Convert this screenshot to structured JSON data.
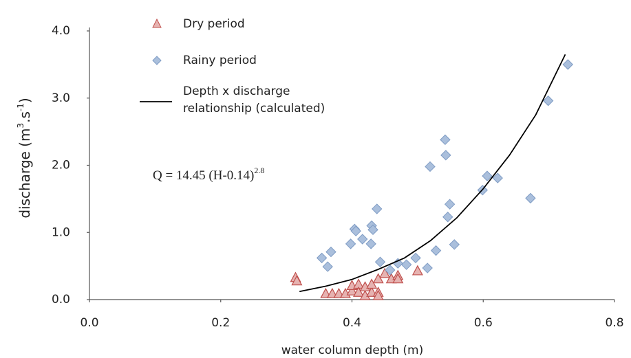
{
  "chart_data": {
    "type": "scatter",
    "xlabel": "water column depth (m)",
    "ylabel": [
      "discharge (m",
      "3",
      ".s",
      "-1",
      ")"
    ],
    "annotation": [
      "Q = 14.45 (H-0.14)",
      "2.8"
    ],
    "xlim": [
      0,
      0.8
    ],
    "xticks": [
      {
        "value": 0,
        "label": "0.0"
      },
      0.2,
      0.4,
      0.6,
      0.8
    ],
    "ylim": [
      0,
      4
    ],
    "yticks": [
      {
        "value": 0,
        "label": "0.0"
      },
      {
        "value": 1,
        "label": "1.0"
      },
      {
        "value": 2,
        "label": "2.0"
      },
      {
        "value": 3,
        "label": "3.0"
      },
      {
        "value": 4,
        "label": "4.0"
      }
    ],
    "series": [
      {
        "name": [
          "Dry period"
        ],
        "marker": "triangle",
        "color": "#c0504d",
        "x": [
          0.314,
          0.316,
          0.36,
          0.37,
          0.38,
          0.39,
          0.4,
          0.4,
          0.41,
          0.41,
          0.42,
          0.42,
          0.43,
          0.43,
          0.44,
          0.44,
          0.44,
          0.45,
          0.46,
          0.47,
          0.47,
          0.5
        ],
        "values": [
          0.32,
          0.27,
          0.08,
          0.08,
          0.08,
          0.08,
          0.12,
          0.2,
          0.22,
          0.1,
          0.05,
          0.18,
          0.1,
          0.22,
          0.3,
          0.1,
          0.05,
          0.38,
          0.3,
          0.35,
          0.3,
          0.42
        ]
      },
      {
        "name": [
          "Rainy period"
        ],
        "marker": "diamond",
        "color": "#7f9cc4",
        "x": [
          0.354,
          0.363,
          0.368,
          0.398,
          0.404,
          0.406,
          0.416,
          0.429,
          0.43,
          0.432,
          0.438,
          0.443,
          0.458,
          0.47,
          0.483,
          0.497,
          0.515,
          0.519,
          0.528,
          0.542,
          0.543,
          0.549,
          0.546,
          0.556,
          0.599,
          0.606,
          0.622,
          0.672,
          0.699,
          0.729
        ],
        "values": [
          0.62,
          0.49,
          0.71,
          0.83,
          1.05,
          1.02,
          0.9,
          0.83,
          1.1,
          1.04,
          1.35,
          0.56,
          0.44,
          0.54,
          0.52,
          0.62,
          0.47,
          1.98,
          0.73,
          2.38,
          2.15,
          1.42,
          1.23,
          0.82,
          1.63,
          1.84,
          1.81,
          1.51,
          2.96,
          3.5
        ]
      },
      {
        "name": [
          "Depth x discharge",
          "relationship (calculated)"
        ],
        "marker": "line",
        "color": "#000000",
        "x": [
          0.32,
          0.36,
          0.4,
          0.44,
          0.48,
          0.52,
          0.56,
          0.6,
          0.64,
          0.68,
          0.725
        ],
        "values": [
          0.12,
          0.2,
          0.3,
          0.45,
          0.62,
          0.88,
          1.22,
          1.65,
          2.15,
          2.75,
          3.65
        ]
      }
    ]
  }
}
